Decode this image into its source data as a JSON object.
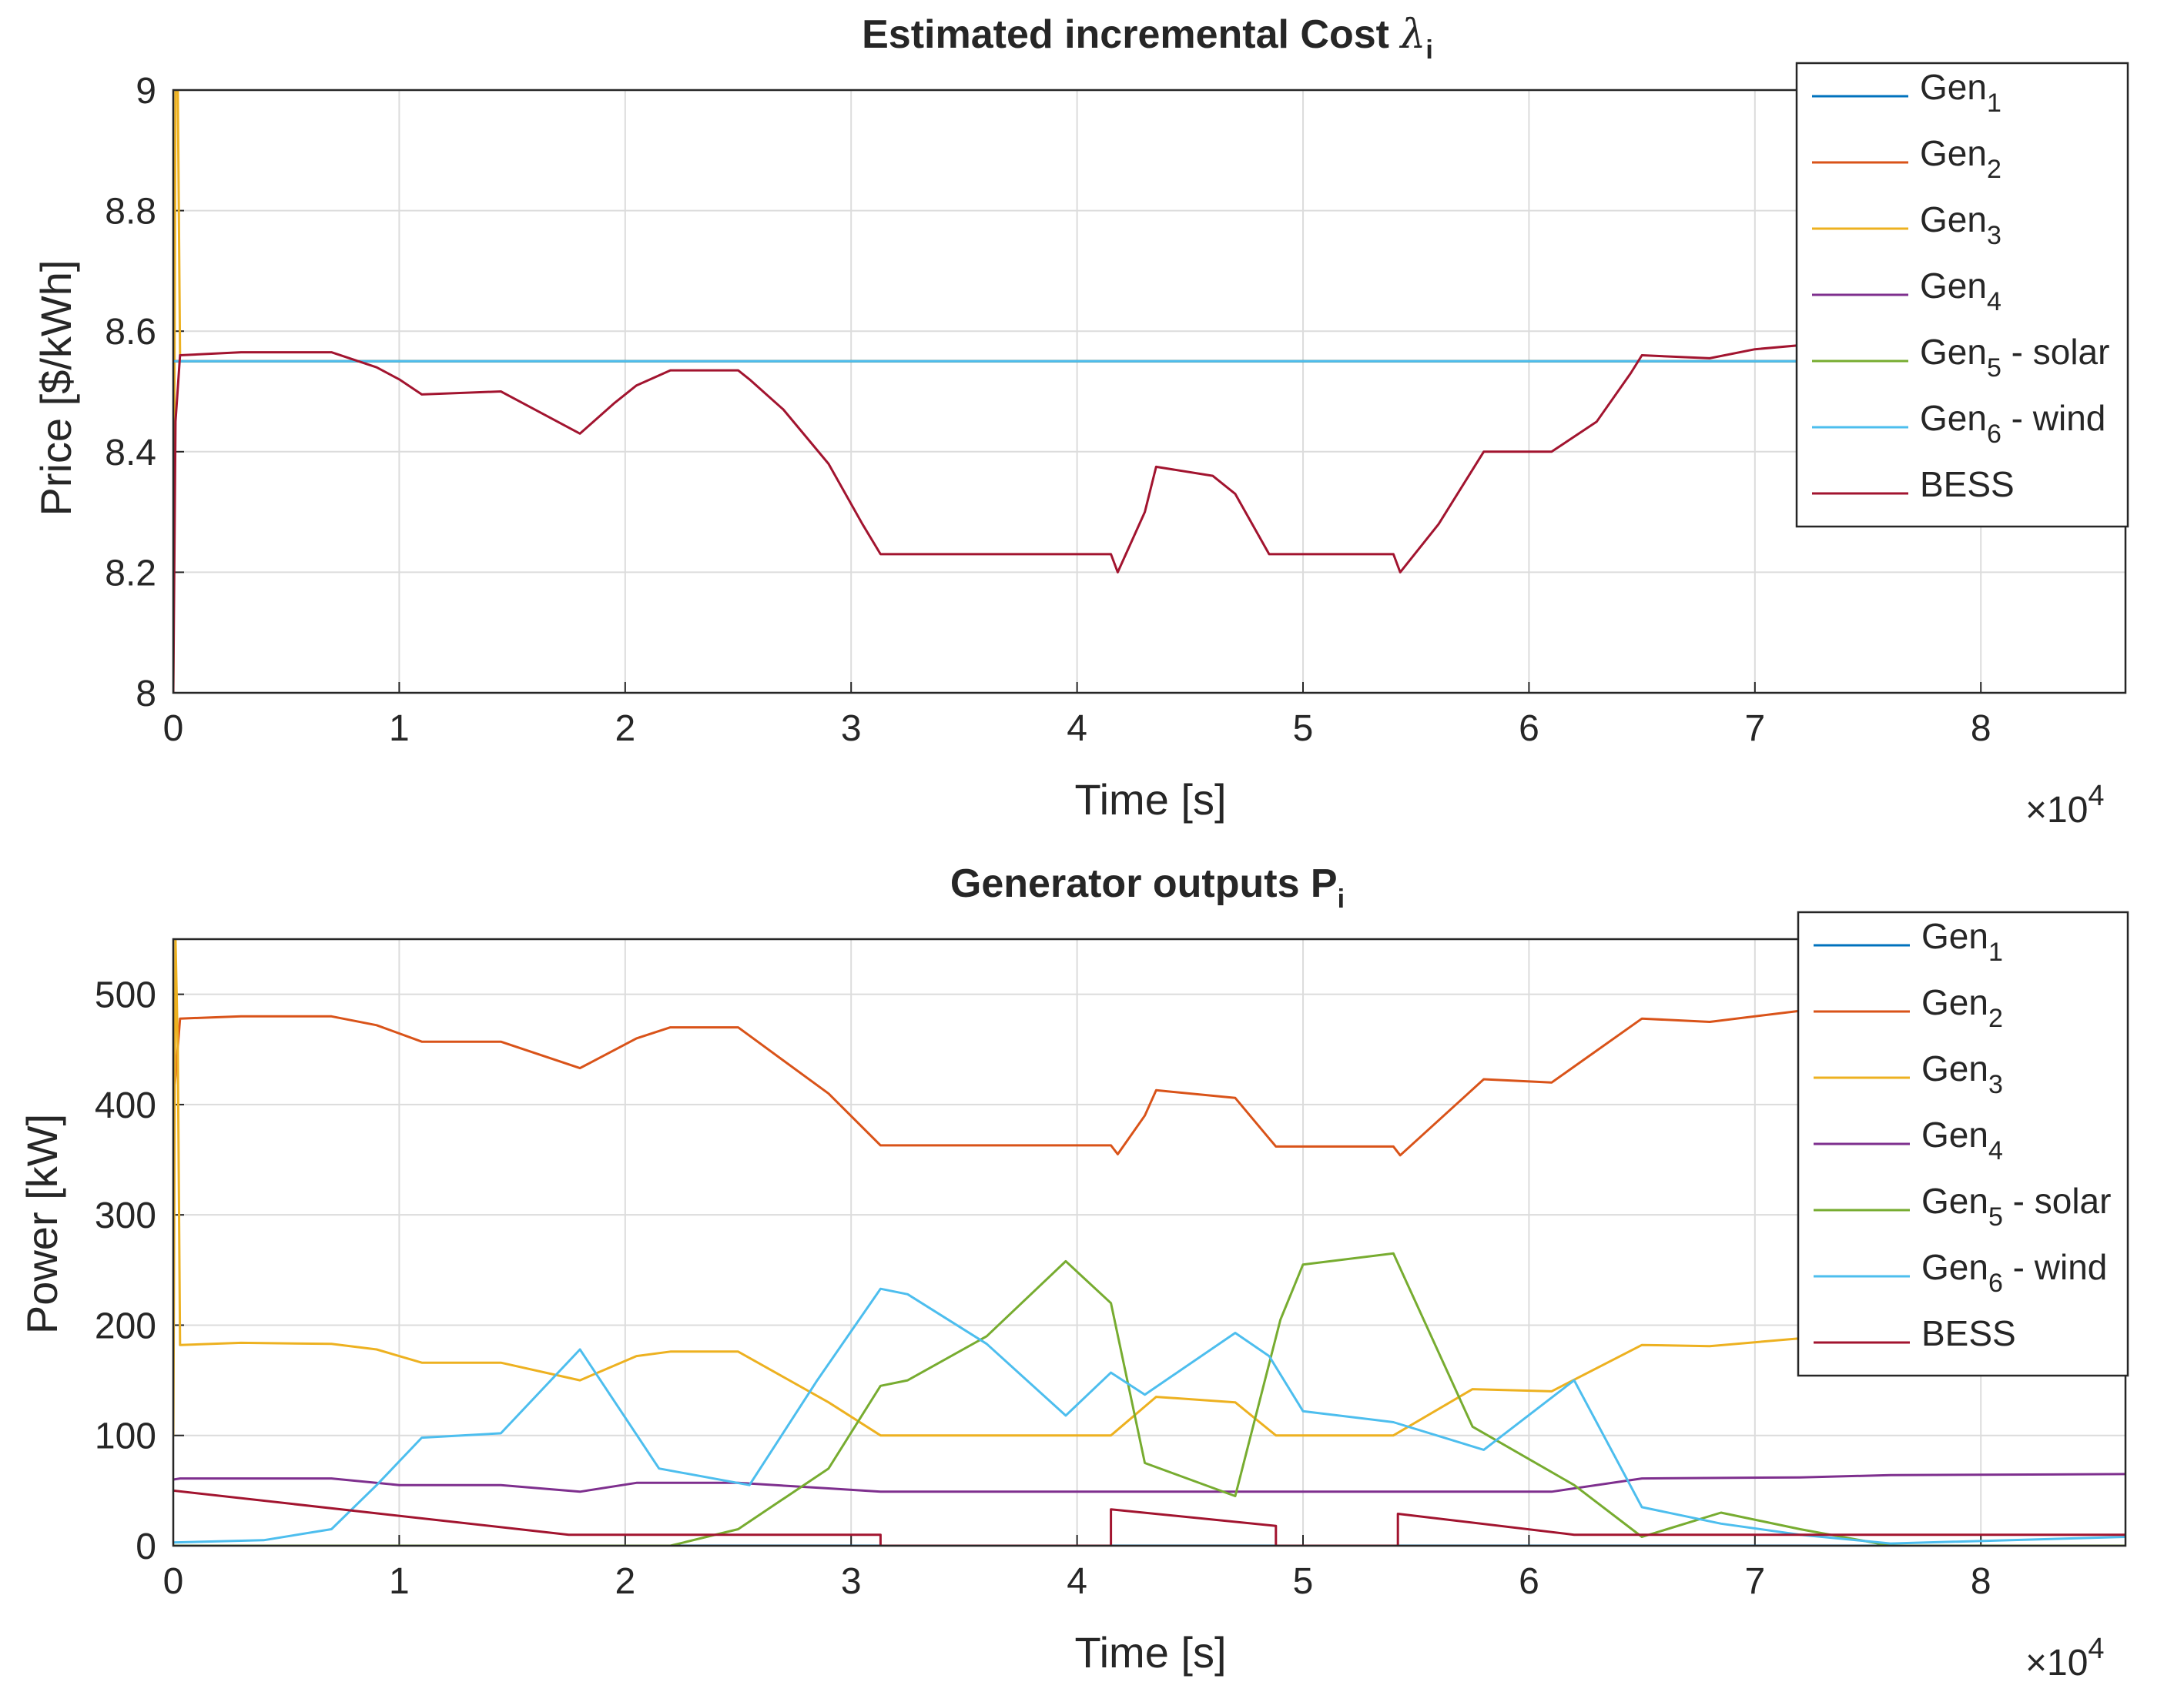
{
  "chart_data": [
    {
      "type": "line",
      "title": "Estimated incremental Cost",
      "title_symbol": "λ",
      "title_subscript": "i",
      "xlabel": "Time [s]",
      "ylabel": "Price [$/kWh]",
      "x_multiplier": "×10",
      "x_multiplier_exponent": "4",
      "xlim": [
        0,
        8.64
      ],
      "ylim": [
        8,
        9
      ],
      "x_unit_scale": 10000,
      "xticks": [
        "0",
        "1",
        "2",
        "3",
        "4",
        "5",
        "6",
        "7",
        "8"
      ],
      "yticks": [
        "8",
        "8.2",
        "8.4",
        "8.6",
        "8.8",
        "9"
      ],
      "grid": true,
      "legend_position": "top-right",
      "series": [
        {
          "name": "Gen",
          "sub": "1",
          "suffix": "",
          "color": "#0072BD",
          "x": [
            0,
            8.64
          ],
          "y": [
            8.55,
            8.55
          ],
          "hidden_under": true
        },
        {
          "name": "Gen",
          "sub": "2",
          "suffix": "",
          "color": "#D95319",
          "x": [
            0,
            8.64
          ],
          "y": [
            8.55,
            8.55
          ],
          "hidden_under": true
        },
        {
          "name": "Gen",
          "sub": "3",
          "suffix": "",
          "color": "#EDB120",
          "x": [
            0,
            0.01,
            0.02,
            0.03
          ],
          "y": [
            8.0,
            9.0,
            9.0,
            8.56
          ]
        },
        {
          "name": "Gen",
          "sub": "4",
          "suffix": "",
          "color": "#7E2F8E",
          "x": [
            0,
            8.64
          ],
          "y": [
            8.55,
            8.55
          ],
          "hidden_under": true
        },
        {
          "name": "Gen",
          "sub": "5",
          "suffix": " - solar",
          "color": "#77AC30",
          "x": [
            0,
            8.64
          ],
          "y": [
            8.55,
            8.55
          ],
          "hidden_under": true
        },
        {
          "name": "Gen",
          "sub": "6",
          "suffix": " - wind",
          "color": "#4DBEEE",
          "x": [
            0,
            8.64
          ],
          "y": [
            8.55,
            8.55
          ],
          "hidden_under": true
        },
        {
          "name": "BESS",
          "sub": "",
          "suffix": "",
          "color": "#A2142F",
          "x": [
            0,
            0.01,
            0.03,
            0.3,
            0.7,
            0.9,
            1.0,
            1.1,
            1.45,
            1.55,
            1.8,
            1.95,
            2.05,
            2.2,
            2.5,
            2.55,
            2.7,
            2.9,
            3.05,
            3.13,
            4.15,
            4.18,
            4.3,
            4.35,
            4.6,
            4.7,
            4.85,
            4.88,
            5.4,
            5.43,
            5.6,
            5.8,
            6.1,
            6.3,
            6.45,
            6.5,
            6.8,
            7.0,
            7.3,
            7.6,
            8.64
          ],
          "y": [
            8.0,
            8.45,
            8.56,
            8.565,
            8.565,
            8.54,
            8.52,
            8.495,
            8.5,
            8.48,
            8.43,
            8.48,
            8.51,
            8.535,
            8.535,
            8.52,
            8.47,
            8.38,
            8.28,
            8.23,
            8.23,
            8.2,
            8.3,
            8.375,
            8.36,
            8.33,
            8.23,
            8.23,
            8.23,
            8.2,
            8.28,
            8.4,
            8.4,
            8.45,
            8.53,
            8.56,
            8.555,
            8.57,
            8.58,
            8.575,
            8.575
          ]
        }
      ]
    },
    {
      "type": "line",
      "title": "Generator outputs P",
      "title_subscript": "i",
      "xlabel": "Time [s]",
      "ylabel": "Power [kW]",
      "x_multiplier": "×10",
      "x_multiplier_exponent": "4",
      "xlim": [
        0,
        8.64
      ],
      "ylim": [
        0,
        550
      ],
      "x_unit_scale": 10000,
      "xticks": [
        "0",
        "1",
        "2",
        "3",
        "4",
        "5",
        "6",
        "7",
        "8"
      ],
      "yticks": [
        "0",
        "100",
        "200",
        "300",
        "400",
        "500"
      ],
      "grid": true,
      "legend_position": "top-right",
      "series": [
        {
          "name": "Gen",
          "sub": "1",
          "suffix": "",
          "color": "#0072BD",
          "x": [
            0,
            8.64
          ],
          "y": [
            0,
            0
          ]
        },
        {
          "name": "Gen",
          "sub": "2",
          "suffix": "",
          "color": "#D95319",
          "x": [
            0,
            0.03,
            0.3,
            0.7,
            0.9,
            1.1,
            1.45,
            1.8,
            2.05,
            2.2,
            2.5,
            2.9,
            3.13,
            4.15,
            4.18,
            4.3,
            4.35,
            4.7,
            4.88,
            5.4,
            5.43,
            5.8,
            6.1,
            6.5,
            6.8,
            7.2,
            7.6,
            8.64
          ],
          "y": [
            400,
            478,
            480,
            480,
            472,
            457,
            457,
            433,
            460,
            470,
            470,
            410,
            363,
            363,
            355,
            390,
            413,
            406,
            362,
            362,
            354,
            423,
            420,
            478,
            475,
            485,
            487,
            485
          ]
        },
        {
          "name": "Gen",
          "sub": "3",
          "suffix": "",
          "color": "#EDB120",
          "x": [
            0,
            0.01,
            0.02,
            0.03,
            0.3,
            0.7,
            0.9,
            1.1,
            1.45,
            1.8,
            2.05,
            2.2,
            2.5,
            2.9,
            3.13,
            4.15,
            4.35,
            4.7,
            4.88,
            5.4,
            5.75,
            6.1,
            6.5,
            6.8,
            7.2,
            7.6,
            8.64
          ],
          "y": [
            100,
            550,
            450,
            182,
            184,
            183,
            178,
            166,
            166,
            150,
            172,
            176,
            176,
            130,
            100,
            100,
            135,
            130,
            100,
            100,
            142,
            140,
            182,
            181,
            188,
            190,
            189
          ]
        },
        {
          "name": "Gen",
          "sub": "4",
          "suffix": "",
          "color": "#7E2F8E",
          "x": [
            0,
            0.03,
            0.3,
            0.7,
            1.0,
            1.45,
            1.8,
            2.05,
            2.5,
            2.9,
            3.13,
            6.1,
            6.5,
            7.2,
            7.6,
            8.64
          ],
          "y": [
            60,
            61,
            61,
            61,
            55,
            55,
            49,
            57,
            57,
            52,
            49,
            49,
            61,
            62,
            64,
            65
          ]
        },
        {
          "name": "Gen",
          "sub": "5",
          "suffix": " - solar",
          "color": "#77AC30",
          "x": [
            0,
            2.2,
            2.5,
            2.9,
            3.13,
            3.25,
            3.6,
            3.95,
            4.15,
            4.3,
            4.7,
            4.9,
            5.0,
            5.4,
            5.75,
            6.2,
            6.5,
            6.85,
            7.2,
            7.6,
            8.64
          ],
          "y": [
            0,
            0,
            15,
            70,
            145,
            150,
            190,
            258,
            220,
            75,
            45,
            205,
            255,
            265,
            108,
            55,
            8,
            30,
            15,
            0,
            0
          ]
        },
        {
          "name": "Gen",
          "sub": "6",
          "suffix": " - wind",
          "color": "#4DBEEE",
          "x": [
            0,
            0.4,
            0.7,
            0.9,
            1.1,
            1.45,
            1.8,
            2.15,
            2.55,
            2.85,
            3.13,
            3.25,
            3.6,
            3.95,
            4.15,
            4.3,
            4.7,
            4.85,
            5.0,
            5.4,
            5.8,
            6.2,
            6.5,
            6.85,
            7.2,
            7.6,
            8.64
          ],
          "y": [
            3,
            5,
            15,
            55,
            98,
            102,
            178,
            70,
            55,
            150,
            233,
            228,
            183,
            118,
            157,
            137,
            193,
            172,
            122,
            112,
            87,
            150,
            35,
            20,
            10,
            2,
            8
          ]
        },
        {
          "name": "BESS",
          "sub": "",
          "suffix": "",
          "color": "#A2142F",
          "x": [
            0,
            1.75,
            3.13,
            3.13,
            4.15,
            4.15,
            4.88,
            4.88,
            5.42,
            5.42,
            6.2,
            8.64
          ],
          "y": [
            50,
            10,
            10,
            0,
            0,
            33,
            18,
            0,
            0,
            29,
            10,
            10
          ]
        }
      ]
    }
  ]
}
